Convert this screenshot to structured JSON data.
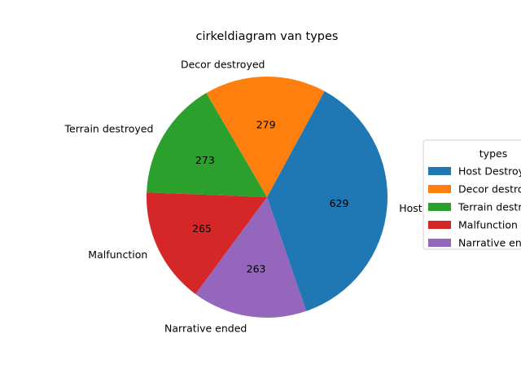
{
  "chart_data": {
    "type": "pie",
    "title": "cirkeldiagram van types",
    "categories": [
      "Host Destroyed",
      "Decor destroyed",
      "Terrain destroyed",
      "Malfunction",
      "Narrative ended"
    ],
    "values": [
      629,
      279,
      273,
      265,
      263
    ],
    "colors": [
      "#1f77b4",
      "#ff7f0e",
      "#2ca02c",
      "#d62728",
      "#9467bd"
    ],
    "legend": {
      "title": "types",
      "placement": "right",
      "entries": [
        "Host Destroyed",
        "Decor destroyed",
        "Terrain destroyed",
        "Malfunction",
        "Narrative ended"
      ]
    }
  }
}
